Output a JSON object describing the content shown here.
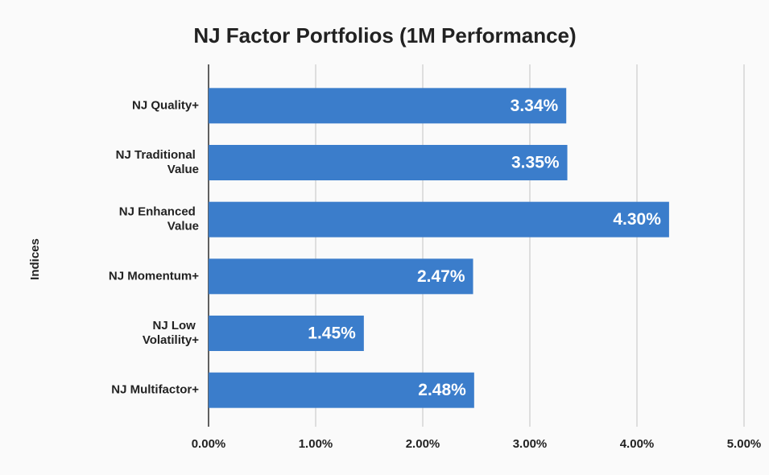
{
  "chart_data": {
    "type": "bar",
    "orientation": "horizontal",
    "title": "NJ Factor Portfolios (1M Performance)",
    "y_label": "Indices",
    "categories": [
      "NJ Quality+",
      "NJ Traditional Value",
      "NJ Enhanced Value",
      "NJ Momentum+",
      "NJ Low Volatility+",
      "NJ Multifactor+"
    ],
    "values": [
      3.34,
      3.35,
      4.3,
      2.47,
      1.45,
      2.48
    ],
    "value_labels": [
      "3.34%",
      "3.35%",
      "4.30%",
      "2.47%",
      "1.45%",
      "2.48%"
    ],
    "color": "#3b7dcb",
    "xlim": [
      0,
      5
    ],
    "xticks": [
      {
        "value": 0,
        "label": "0.00%"
      },
      {
        "value": 1,
        "label": "1.00%"
      },
      {
        "value": 2,
        "label": "2.00%"
      },
      {
        "value": 3,
        "label": "3.00%"
      },
      {
        "value": 4,
        "label": "4.00%"
      },
      {
        "value": 5,
        "label": "5.00%"
      }
    ],
    "grid": true
  }
}
